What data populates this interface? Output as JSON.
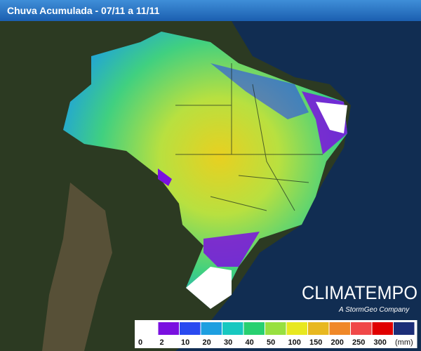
{
  "header": {
    "title": "Chuva Acumulada - 07/11 a 11/11"
  },
  "brand": {
    "name": "CLIMATEMPO",
    "tagline": "A StormGeo Company"
  },
  "legend": {
    "unit": "(mm)",
    "items": [
      {
        "label": "0",
        "color": "#ffffff"
      },
      {
        "label": "2",
        "color": "#7a10e0"
      },
      {
        "label": "10",
        "color": "#2a4af0"
      },
      {
        "label": "20",
        "color": "#1e9fe0"
      },
      {
        "label": "30",
        "color": "#18c8c0"
      },
      {
        "label": "40",
        "color": "#28d070"
      },
      {
        "label": "50",
        "color": "#98e040"
      },
      {
        "label": "100",
        "color": "#e8e820"
      },
      {
        "label": "150",
        "color": "#e8b820"
      },
      {
        "label": "200",
        "color": "#f08828"
      },
      {
        "label": "250",
        "color": "#f04848"
      },
      {
        "label": "300",
        "color": "#e00000"
      },
      {
        "label": "",
        "color": "#1c2e78"
      }
    ]
  }
}
